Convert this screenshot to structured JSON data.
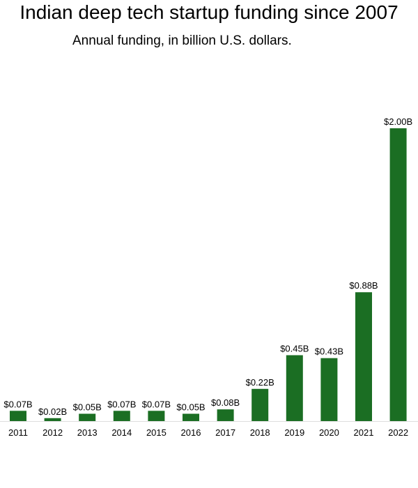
{
  "chart_data": {
    "type": "bar",
    "title": "Indian deep tech startup funding since 2007",
    "subtitle": "Annual funding, in billion U.S. dollars.",
    "xlabel": "",
    "ylabel": "",
    "categories": [
      "2011",
      "2012",
      "2013",
      "2014",
      "2015",
      "2016",
      "2017",
      "2018",
      "2019",
      "2020",
      "2021",
      "2022"
    ],
    "values": [
      0.07,
      0.02,
      0.05,
      0.07,
      0.07,
      0.05,
      0.08,
      0.22,
      0.45,
      0.43,
      0.88,
      2.0
    ],
    "data_labels": [
      "$0.07B",
      "$0.02B",
      "$0.05B",
      "$0.07B",
      "$0.07B",
      "$0.05B",
      "$0.08B",
      "$0.22B",
      "$0.45B",
      "$0.43B",
      "$0.88B",
      "$2.00B"
    ],
    "ylim": [
      0,
      2.0
    ],
    "grid": false,
    "legend": "none",
    "bar_color": "#1b6e23",
    "axis_color": "#dddddd"
  }
}
